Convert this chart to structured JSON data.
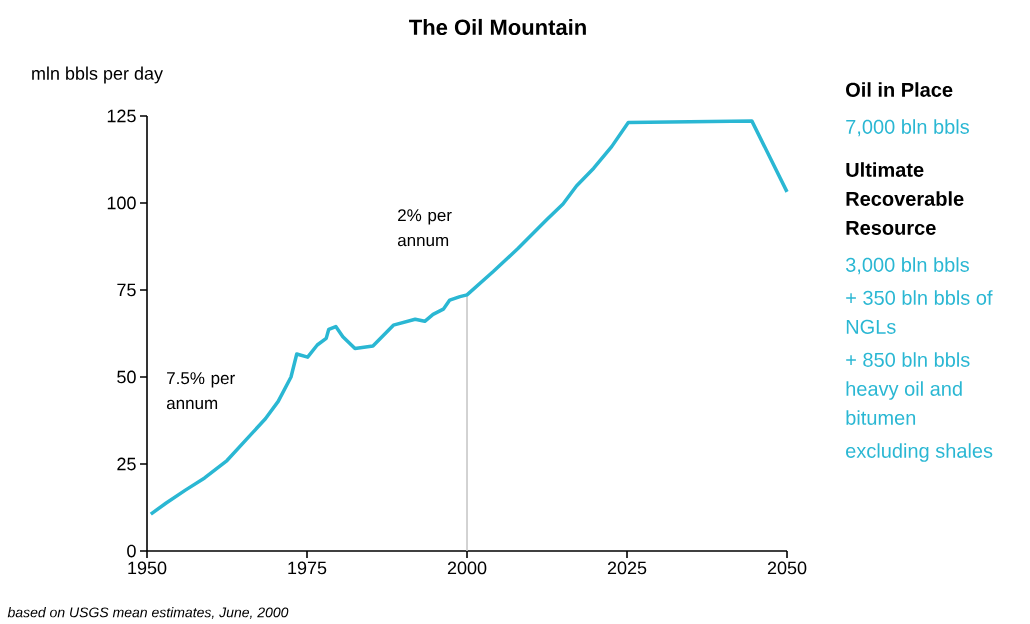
{
  "chart_data": {
    "type": "line",
    "title": "The Oil Mountain",
    "ylabel": "mln bbls per day",
    "x": [
      1950.6,
      1953,
      1956,
      1959,
      1962.5,
      1965.5,
      1968.5,
      1970.5,
      1972.5,
      1973.4,
      1975.1,
      1976.6,
      1978,
      1978.4,
      1979.5,
      1980.6,
      1982.5,
      1985.3,
      1988.5,
      1991.9,
      1993.4,
      1994.7,
      1996.3,
      1997.3,
      1998.9,
      2000,
      2004.1,
      2008,
      2012.4,
      2015,
      2017.1,
      2019.8,
      2022.6,
      2025.2,
      2044.5,
      2050
    ],
    "values": [
      10.6,
      13.8,
      17.5,
      21,
      26,
      32,
      38,
      43,
      50,
      56.6,
      55.7,
      59.2,
      61.1,
      63.7,
      64.5,
      61.6,
      58.2,
      58.9,
      64.9,
      66.6,
      66,
      68,
      69.5,
      72.1,
      73.1,
      73.6,
      80.3,
      87,
      95.1,
      99.7,
      104.9,
      110,
      116.2,
      123.1,
      123.6,
      103.2
    ],
    "color": "#2ab7d3",
    "xlim": [
      1950,
      2050
    ],
    "ylim": [
      0,
      125
    ],
    "xticks": [
      1950,
      1975,
      2000,
      2025,
      2050
    ],
    "yticks": [
      0,
      25,
      50,
      75,
      100,
      125
    ],
    "ref_lines": [
      {
        "axis": "x",
        "value": 2000,
        "color": "#c8c8c8"
      }
    ],
    "annotations": [
      "7.5% per annum",
      "2% per annum",
      "Oil in Place",
      "7,000 bln bbls",
      "Ultimate Recoverable Resource",
      "3,000 bln bbls",
      "+ 350 bln bbls of NGLs",
      "+ 850 bln bbls heavy oil and bitumen",
      "excluding shales",
      "based on USGS mean estimates, June, 2000"
    ]
  }
}
